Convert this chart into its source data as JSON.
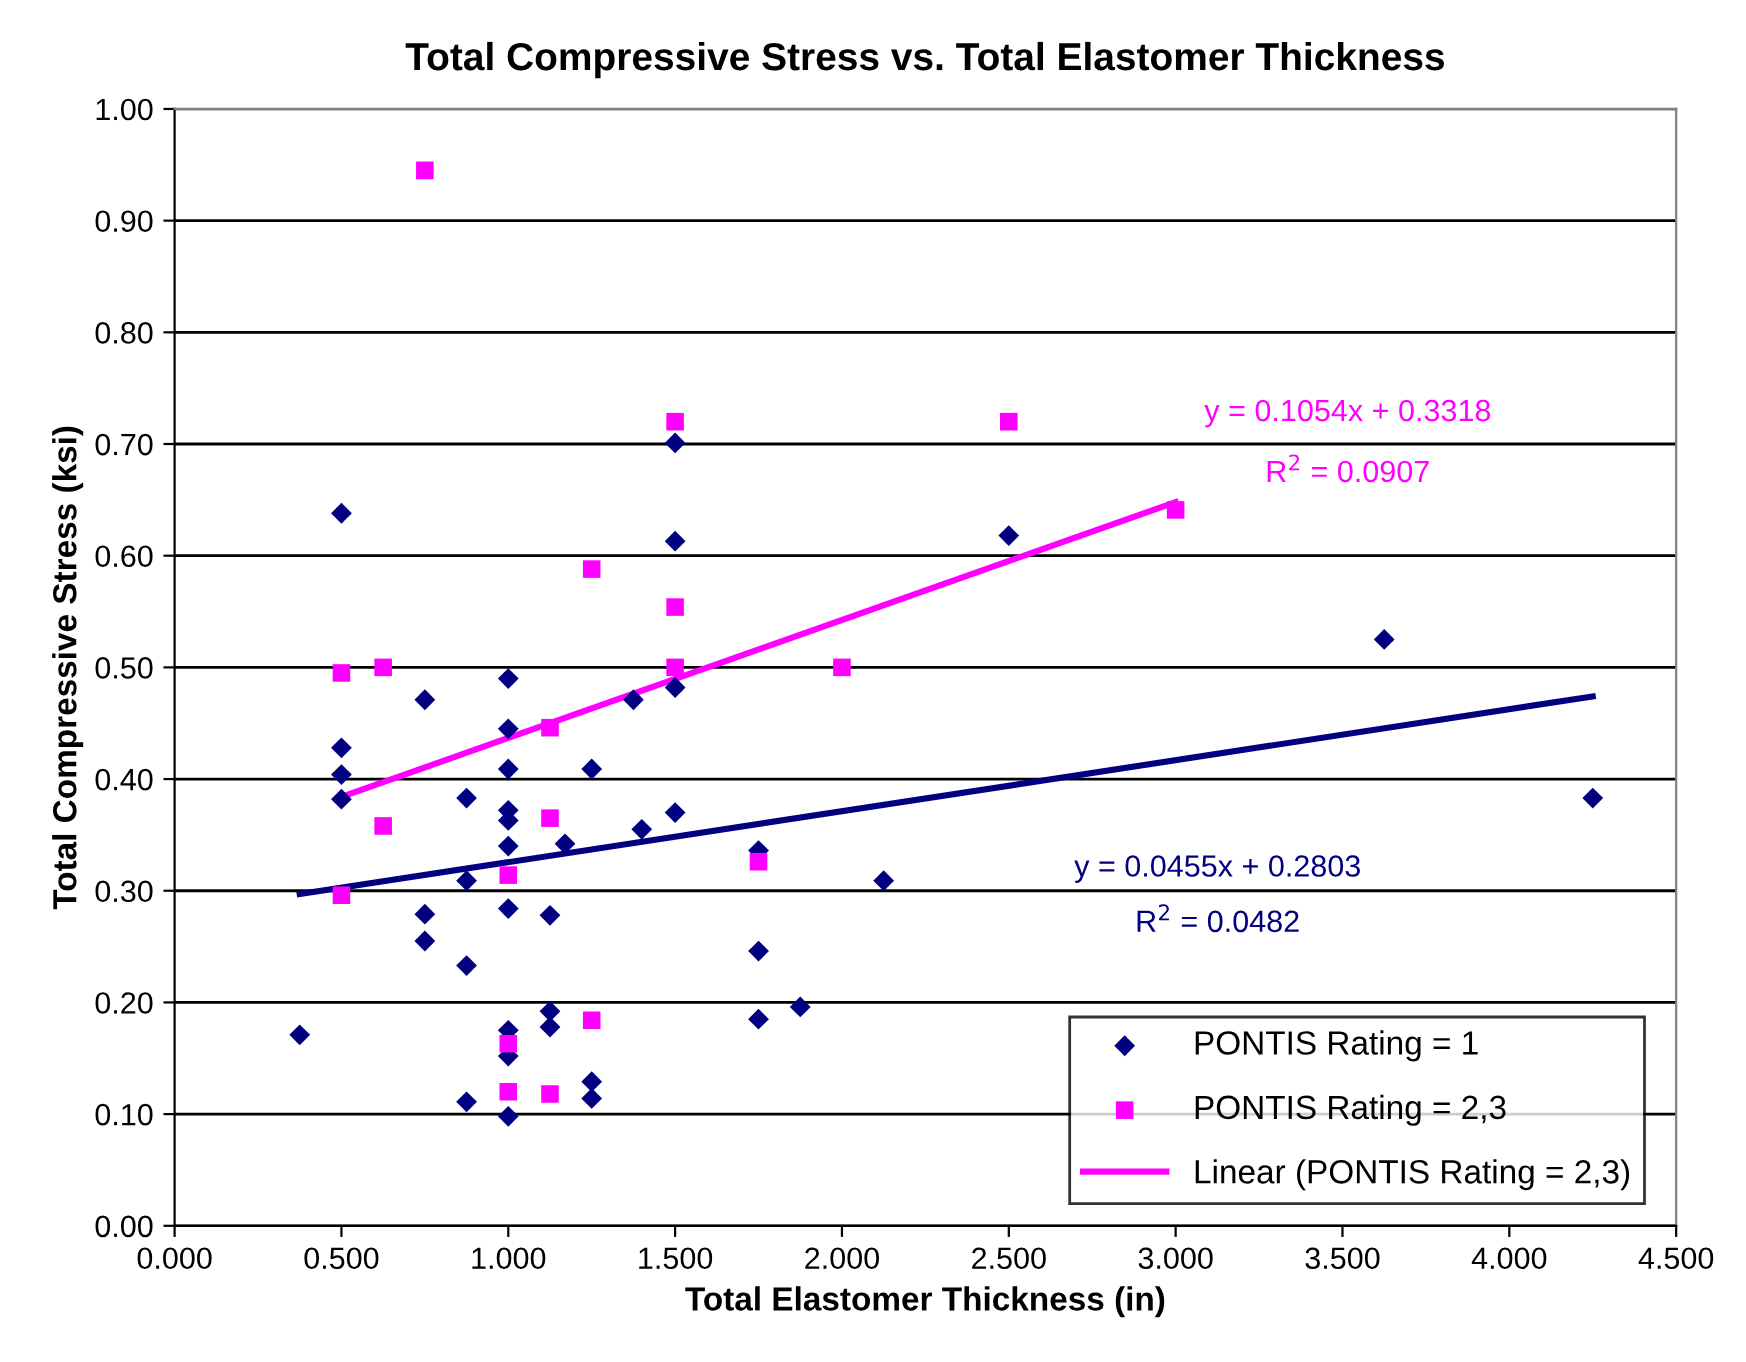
{
  "chart_data": {
    "type": "scatter",
    "title": "Total Compressive Stress vs. Total Elastomer Thickness",
    "xlabel": "Total Elastomer Thickness (in)",
    "ylabel": "Total Compressive Stress (ksi)",
    "series": [
      {
        "name": "PONTIS Rating = 1",
        "color": "#000080",
        "marker": "diamond",
        "x": [
          0.375,
          0.5,
          0.5,
          0.5,
          0.5,
          0.75,
          0.75,
          0.75,
          0.875,
          0.875,
          0.875,
          0.875,
          1.0,
          1.0,
          1.0,
          1.0,
          1.0,
          1.0,
          1.0,
          1.0,
          1.0,
          1.0,
          1.125,
          1.125,
          1.125,
          1.17,
          1.25,
          1.25,
          1.25,
          1.375,
          1.4,
          1.5,
          1.5,
          1.5,
          1.5,
          1.75,
          1.75,
          1.75,
          1.875,
          2.125,
          2.5,
          3.625,
          4.25
        ],
        "values": [
          0.171,
          0.638,
          0.428,
          0.404,
          0.382,
          0.471,
          0.279,
          0.255,
          0.383,
          0.309,
          0.233,
          0.111,
          0.49,
          0.445,
          0.409,
          0.372,
          0.363,
          0.34,
          0.284,
          0.175,
          0.152,
          0.098,
          0.278,
          0.192,
          0.178,
          0.342,
          0.409,
          0.129,
          0.114,
          0.471,
          0.355,
          0.701,
          0.613,
          0.482,
          0.37,
          0.336,
          0.246,
          0.185,
          0.196,
          0.309,
          0.618,
          0.525,
          0.383
        ]
      },
      {
        "name": "PONTIS Rating = 2,3",
        "color": "#ff00ff",
        "marker": "square",
        "x": [
          0.5,
          0.5,
          0.625,
          0.625,
          0.75,
          1.0,
          1.0,
          1.0,
          1.125,
          1.125,
          1.125,
          1.25,
          1.25,
          1.5,
          1.5,
          1.5,
          1.75,
          2.0,
          2.5,
          3.0
        ],
        "values": [
          0.495,
          0.296,
          0.5,
          0.358,
          0.945,
          0.314,
          0.163,
          0.12,
          0.446,
          0.365,
          0.118,
          0.588,
          0.184,
          0.72,
          0.554,
          0.5,
          0.326,
          0.5,
          0.72,
          0.641
        ]
      },
      {
        "type": "line",
        "name": "Linear (PONTIS Rating = 2,3)",
        "color": "#ff00ff",
        "x": [
          0.5,
          3.0
        ],
        "values": [
          0.384,
          0.648
        ]
      },
      {
        "type": "line",
        "color": "#000080",
        "x": [
          0.375,
          4.25
        ],
        "values": [
          0.297,
          0.474
        ]
      }
    ],
    "annotations": [
      "y = 0.1054x + 0.3318",
      "R$^{2}$ = 0.0907",
      "y = 0.0455x + 0.2803",
      "R$^{2}$ = 0.0482"
    ],
    "xlim": [
      0,
      4.5
    ],
    "ylim": [
      0,
      1.0
    ],
    "xticks": [
      {
        "value": 0,
        "label": "0.000"
      },
      {
        "value": 0.5,
        "label": "0.500"
      },
      {
        "value": 1.0,
        "label": "1.000"
      },
      {
        "value": 1.5,
        "label": "1.500"
      },
      {
        "value": 2.0,
        "label": "2.000"
      },
      {
        "value": 2.5,
        "label": "2.500"
      },
      {
        "value": 3.0,
        "label": "3.000"
      },
      {
        "value": 3.5,
        "label": "3.500"
      },
      {
        "value": 4.0,
        "label": "4.000"
      },
      {
        "value": 4.5,
        "label": "4.500"
      }
    ],
    "yticks": [
      {
        "value": 0,
        "label": "0.00"
      },
      {
        "value": 0.1,
        "label": "0.10"
      },
      {
        "value": 0.2,
        "label": "0.20"
      },
      {
        "value": 0.3,
        "label": "0.30"
      },
      {
        "value": 0.4,
        "label": "0.40"
      },
      {
        "value": 0.5,
        "label": "0.50"
      },
      {
        "value": 0.6,
        "label": "0.60"
      },
      {
        "value": 0.7,
        "label": "0.70"
      },
      {
        "value": 0.8,
        "label": "0.80"
      },
      {
        "value": 0.9,
        "label": "0.90"
      },
      {
        "value": 1.0,
        "label": "1.00"
      }
    ],
    "grid": "y",
    "legend": "bottom right"
  }
}
